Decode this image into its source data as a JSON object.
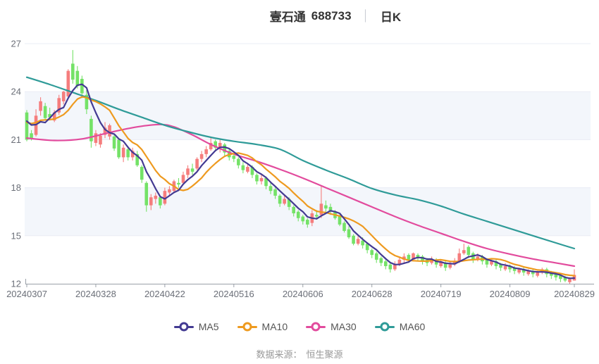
{
  "title": {
    "stock_name": "壹石通",
    "stock_code": "688733",
    "separator": "│",
    "chart_type": "日K"
  },
  "source": {
    "label": "数据来源：",
    "value": "恒生聚源"
  },
  "legend": [
    {
      "label": "MA5",
      "color": "#433a92"
    },
    {
      "label": "MA10",
      "color": "#ee9a1f"
    },
    {
      "label": "MA30",
      "color": "#e24b9d"
    },
    {
      "label": "MA60",
      "color": "#2f9b98"
    }
  ],
  "colors": {
    "up": "#f57d7d",
    "down": "#74e267",
    "grid": "#e9ecf4",
    "band": "#f3f6fb",
    "axis": "#9aa0a8",
    "label": "#6b6f78",
    "ma5": "#433a92",
    "ma10": "#ee9a1f",
    "ma30": "#e24b9d",
    "ma60": "#2f9b98"
  },
  "chart_data": {
    "type": "candlestick",
    "title": "壹石通 688733 日K",
    "y_axis": {
      "min": 12,
      "max": 27,
      "ticks": [
        27,
        24,
        21,
        18,
        15,
        12
      ],
      "bands": [
        [
          24,
          21
        ],
        [
          18,
          15
        ]
      ]
    },
    "x_ticks": [
      {
        "i": 0,
        "label": "20240307"
      },
      {
        "i": 15,
        "label": "20240328"
      },
      {
        "i": 30,
        "label": "20240422"
      },
      {
        "i": 45,
        "label": "20240516"
      },
      {
        "i": 60,
        "label": "20240606"
      },
      {
        "i": 75,
        "label": "20240628"
      },
      {
        "i": 90,
        "label": "20240719"
      },
      {
        "i": 105,
        "label": "20240809"
      },
      {
        "i": 119,
        "label": "20240829"
      }
    ],
    "candles": [
      [
        "20240307",
        22.7,
        22.85,
        20.9,
        21.0
      ],
      [
        "20240308",
        21.4,
        21.6,
        20.95,
        21.1
      ],
      [
        "20240311",
        21.3,
        22.9,
        21.2,
        22.5
      ],
      [
        "20240312",
        22.8,
        23.65,
        22.5,
        23.4
      ],
      [
        "20240313",
        23.1,
        23.3,
        22.2,
        22.35
      ],
      [
        "20240314",
        22.6,
        23.0,
        22.3,
        22.4
      ],
      [
        "20240315",
        22.2,
        22.85,
        22.1,
        22.7
      ],
      [
        "20240318",
        22.7,
        23.8,
        22.55,
        23.6
      ],
      [
        "20240319",
        23.4,
        24.05,
        23.2,
        24.0
      ],
      [
        "20240320",
        23.7,
        25.4,
        23.6,
        25.3
      ],
      [
        "20240321",
        25.75,
        26.6,
        24.5,
        24.75
      ],
      [
        "20240322",
        25.3,
        25.6,
        24.2,
        24.35
      ],
      [
        "20240325",
        24.8,
        25.0,
        23.6,
        23.9
      ],
      [
        "20240326",
        23.8,
        24.1,
        22.6,
        22.9
      ],
      [
        "20240327",
        22.3,
        22.5,
        20.5,
        20.9
      ],
      [
        "20240328",
        20.8,
        21.6,
        20.6,
        21.4
      ],
      [
        "20240329",
        20.7,
        21.4,
        20.5,
        21.25
      ],
      [
        "20240401",
        21.3,
        22.1,
        21.1,
        21.75
      ],
      [
        "20240402",
        21.2,
        22.0,
        21.0,
        21.9
      ],
      [
        "20240403",
        21.2,
        21.3,
        20.3,
        20.45
      ],
      [
        "20240408",
        21.0,
        21.1,
        19.8,
        19.9
      ],
      [
        "20240409",
        19.9,
        20.7,
        19.6,
        20.5
      ],
      [
        "20240410",
        20.4,
        20.6,
        19.7,
        19.9
      ],
      [
        "20240411",
        19.9,
        20.5,
        19.7,
        20.3
      ],
      [
        "20240412",
        20.1,
        20.3,
        19.3,
        19.4
      ],
      [
        "20240415",
        19.3,
        19.4,
        18.3,
        18.5
      ],
      [
        "20240416",
        18.3,
        18.4,
        16.5,
        16.9
      ],
      [
        "20240417",
        16.9,
        17.6,
        16.6,
        17.4
      ],
      [
        "20240418",
        17.3,
        17.7,
        17.0,
        17.5
      ],
      [
        "20240419",
        17.4,
        17.5,
        16.7,
        16.9
      ],
      [
        "20240422",
        17.0,
        18.0,
        16.9,
        17.8
      ],
      [
        "20240423",
        17.7,
        18.1,
        17.5,
        17.9
      ],
      [
        "20240424",
        17.8,
        18.5,
        17.7,
        18.4
      ],
      [
        "20240425",
        18.3,
        18.6,
        18.0,
        18.2
      ],
      [
        "20240426",
        18.3,
        19.0,
        18.2,
        18.8
      ],
      [
        "20240429",
        18.8,
        19.4,
        18.6,
        19.2
      ],
      [
        "20240430",
        19.2,
        19.5,
        18.8,
        19.0
      ],
      [
        "20240506",
        19.2,
        19.9,
        19.1,
        19.8
      ],
      [
        "20240507",
        19.8,
        20.3,
        19.6,
        20.1
      ],
      [
        "20240508",
        20.1,
        20.6,
        19.9,
        20.4
      ],
      [
        "20240509",
        20.4,
        21.1,
        20.3,
        20.8
      ],
      [
        "20240510",
        20.9,
        21.0,
        20.3,
        20.5
      ],
      [
        "20240513",
        20.5,
        21.0,
        20.2,
        20.8
      ],
      [
        "20240514",
        20.7,
        20.8,
        20.0,
        20.2
      ],
      [
        "20240515",
        20.3,
        20.4,
        19.7,
        19.9
      ],
      [
        "20240516",
        20.0,
        20.1,
        19.6,
        19.8
      ],
      [
        "20240517",
        19.8,
        19.9,
        19.2,
        19.4
      ],
      [
        "20240520",
        19.4,
        19.6,
        18.9,
        19.1
      ],
      [
        "20240521",
        19.0,
        19.5,
        18.9,
        19.3
      ],
      [
        "20240522",
        19.3,
        19.4,
        18.6,
        18.8
      ],
      [
        "20240523",
        18.8,
        18.9,
        18.2,
        18.4
      ],
      [
        "20240524",
        18.4,
        18.8,
        18.2,
        18.6
      ],
      [
        "20240527",
        18.6,
        18.7,
        17.9,
        18.1
      ],
      [
        "20240528",
        18.1,
        18.3,
        17.6,
        17.8
      ],
      [
        "20240529",
        17.9,
        18.0,
        17.3,
        17.5
      ],
      [
        "20240530",
        17.5,
        17.6,
        16.8,
        17.0
      ],
      [
        "20240531",
        17.0,
        17.5,
        16.9,
        17.3
      ],
      [
        "20240603",
        17.3,
        17.4,
        16.6,
        16.8
      ],
      [
        "20240604",
        16.8,
        16.9,
        16.2,
        16.4
      ],
      [
        "20240605",
        16.5,
        16.6,
        15.9,
        16.1
      ],
      [
        "20240606",
        16.2,
        16.3,
        15.7,
        15.9
      ],
      [
        "20240607",
        16.0,
        16.1,
        15.5,
        15.7
      ],
      [
        "20240611",
        15.8,
        16.6,
        15.6,
        16.4
      ],
      [
        "20240612",
        16.3,
        16.6,
        16.0,
        16.2
      ],
      [
        "20240613",
        16.3,
        18.1,
        16.1,
        17.0
      ],
      [
        "20240614",
        16.9,
        17.2,
        16.5,
        16.7
      ],
      [
        "20240617",
        16.8,
        17.0,
        16.3,
        16.5
      ],
      [
        "20240618",
        16.5,
        16.6,
        16.0,
        16.1
      ],
      [
        "20240619",
        16.2,
        16.3,
        15.6,
        15.7
      ],
      [
        "20240620",
        15.8,
        15.9,
        15.2,
        15.3
      ],
      [
        "20240621",
        15.4,
        15.6,
        14.8,
        14.9
      ],
      [
        "20240624",
        15.0,
        15.1,
        14.4,
        14.5
      ],
      [
        "20240625",
        14.5,
        15.0,
        14.4,
        14.8
      ],
      [
        "20240626",
        14.7,
        14.9,
        14.2,
        14.4
      ],
      [
        "20240627",
        14.5,
        14.6,
        13.9,
        14.1
      ],
      [
        "20240628",
        14.1,
        14.2,
        13.6,
        13.8
      ],
      [
        "20240701",
        13.9,
        14.0,
        13.3,
        13.5
      ],
      [
        "20240702",
        13.6,
        13.7,
        13.1,
        13.3
      ],
      [
        "20240703",
        13.4,
        13.5,
        12.9,
        13.1
      ],
      [
        "20240704",
        13.2,
        13.3,
        12.7,
        12.9
      ],
      [
        "20240705",
        12.9,
        13.4,
        12.8,
        13.2
      ],
      [
        "20240708",
        13.2,
        13.7,
        13.1,
        13.5
      ],
      [
        "20240709",
        13.5,
        13.9,
        13.3,
        13.7
      ],
      [
        "20240710",
        13.8,
        13.9,
        13.3,
        13.5
      ],
      [
        "20240711",
        13.5,
        13.95,
        13.4,
        13.9
      ],
      [
        "20240712",
        13.8,
        13.9,
        13.4,
        13.6
      ],
      [
        "20240715",
        13.7,
        13.8,
        13.2,
        13.4
      ],
      [
        "20240716",
        13.5,
        13.6,
        13.1,
        13.3
      ],
      [
        "20240717",
        13.3,
        13.7,
        13.2,
        13.5
      ],
      [
        "20240718",
        13.5,
        13.6,
        13.0,
        13.2
      ],
      [
        "20240719",
        13.1,
        13.5,
        13.0,
        13.4
      ],
      [
        "20240722",
        13.3,
        13.4,
        12.8,
        13.0
      ],
      [
        "20240723",
        13.0,
        13.4,
        12.9,
        13.2
      ],
      [
        "20240724",
        13.2,
        13.6,
        13.1,
        13.4
      ],
      [
        "20240725",
        13.4,
        14.2,
        13.3,
        13.9
      ],
      [
        "20240726",
        13.9,
        14.5,
        13.8,
        14.1
      ],
      [
        "20240729",
        14.3,
        14.4,
        13.6,
        13.8
      ],
      [
        "20240730",
        13.9,
        14.0,
        13.3,
        13.5
      ],
      [
        "20240731",
        13.5,
        13.9,
        13.4,
        13.7
      ],
      [
        "20240801",
        13.7,
        13.8,
        13.2,
        13.4
      ],
      [
        "20240802",
        13.5,
        13.6,
        13.0,
        13.2
      ],
      [
        "20240805",
        13.2,
        13.5,
        13.1,
        13.4
      ],
      [
        "20240806",
        13.4,
        13.5,
        12.9,
        13.1
      ],
      [
        "20240807",
        13.2,
        13.3,
        12.8,
        13.0
      ],
      [
        "20240808",
        12.9,
        13.3,
        12.8,
        13.1
      ],
      [
        "20240809",
        13.1,
        13.2,
        12.7,
        12.9
      ],
      [
        "20240812",
        13.0,
        13.1,
        12.6,
        12.8
      ],
      [
        "20240813",
        12.7,
        13.0,
        12.6,
        12.9
      ],
      [
        "20240814",
        12.9,
        13.0,
        12.5,
        12.7
      ],
      [
        "20240815",
        12.6,
        12.9,
        12.5,
        12.8
      ],
      [
        "20240816",
        12.8,
        12.9,
        12.4,
        12.6
      ],
      [
        "20240819",
        12.5,
        12.8,
        12.4,
        12.7
      ],
      [
        "20240820",
        12.7,
        13.0,
        12.6,
        12.9
      ],
      [
        "20240821",
        12.9,
        13.0,
        12.4,
        12.6
      ],
      [
        "20240822",
        12.7,
        12.8,
        12.3,
        12.5
      ],
      [
        "20240823",
        12.6,
        12.7,
        12.2,
        12.4
      ],
      [
        "20240826",
        12.5,
        12.6,
        12.1,
        12.3
      ],
      [
        "20240827",
        12.4,
        12.5,
        12.1,
        12.2
      ],
      [
        "20240828",
        12.1,
        12.4,
        12.0,
        12.3
      ],
      [
        "20240829",
        12.2,
        12.9,
        12.2,
        12.55
      ]
    ],
    "ma_pre_closes": [
      21.8,
      21.9,
      22.0,
      22.1,
      22.2,
      22.3,
      22.4,
      22.5,
      22.6
    ],
    "ma5_period": 5,
    "ma10_period": 10,
    "ma30_anchors": [
      [
        0,
        21.1
      ],
      [
        6,
        20.95
      ],
      [
        12,
        21.05
      ],
      [
        18,
        21.45
      ],
      [
        24,
        21.8
      ],
      [
        29,
        21.95
      ],
      [
        32,
        21.8
      ],
      [
        36,
        21.3
      ],
      [
        40,
        20.7
      ],
      [
        45,
        20.1
      ],
      [
        50,
        19.65
      ],
      [
        55,
        19.15
      ],
      [
        60,
        18.6
      ],
      [
        65,
        18.0
      ],
      [
        70,
        17.4
      ],
      [
        75,
        16.8
      ],
      [
        80,
        16.2
      ],
      [
        85,
        15.65
      ],
      [
        90,
        15.15
      ],
      [
        95,
        14.65
      ],
      [
        100,
        14.2
      ],
      [
        105,
        13.85
      ],
      [
        110,
        13.55
      ],
      [
        115,
        13.3
      ],
      [
        119,
        13.1
      ]
    ],
    "ma60_anchors": [
      [
        0,
        24.9
      ],
      [
        5,
        24.45
      ],
      [
        10,
        23.95
      ],
      [
        15,
        23.45
      ],
      [
        20,
        22.9
      ],
      [
        25,
        22.4
      ],
      [
        30,
        21.9
      ],
      [
        35,
        21.5
      ],
      [
        40,
        21.15
      ],
      [
        45,
        20.9
      ],
      [
        50,
        20.7
      ],
      [
        55,
        20.4
      ],
      [
        60,
        19.7
      ],
      [
        65,
        19.1
      ],
      [
        70,
        18.55
      ],
      [
        75,
        17.95
      ],
      [
        80,
        17.55
      ],
      [
        85,
        17.25
      ],
      [
        90,
        16.85
      ],
      [
        95,
        16.35
      ],
      [
        100,
        15.9
      ],
      [
        105,
        15.45
      ],
      [
        110,
        15.0
      ],
      [
        115,
        14.55
      ],
      [
        119,
        14.2
      ]
    ]
  }
}
